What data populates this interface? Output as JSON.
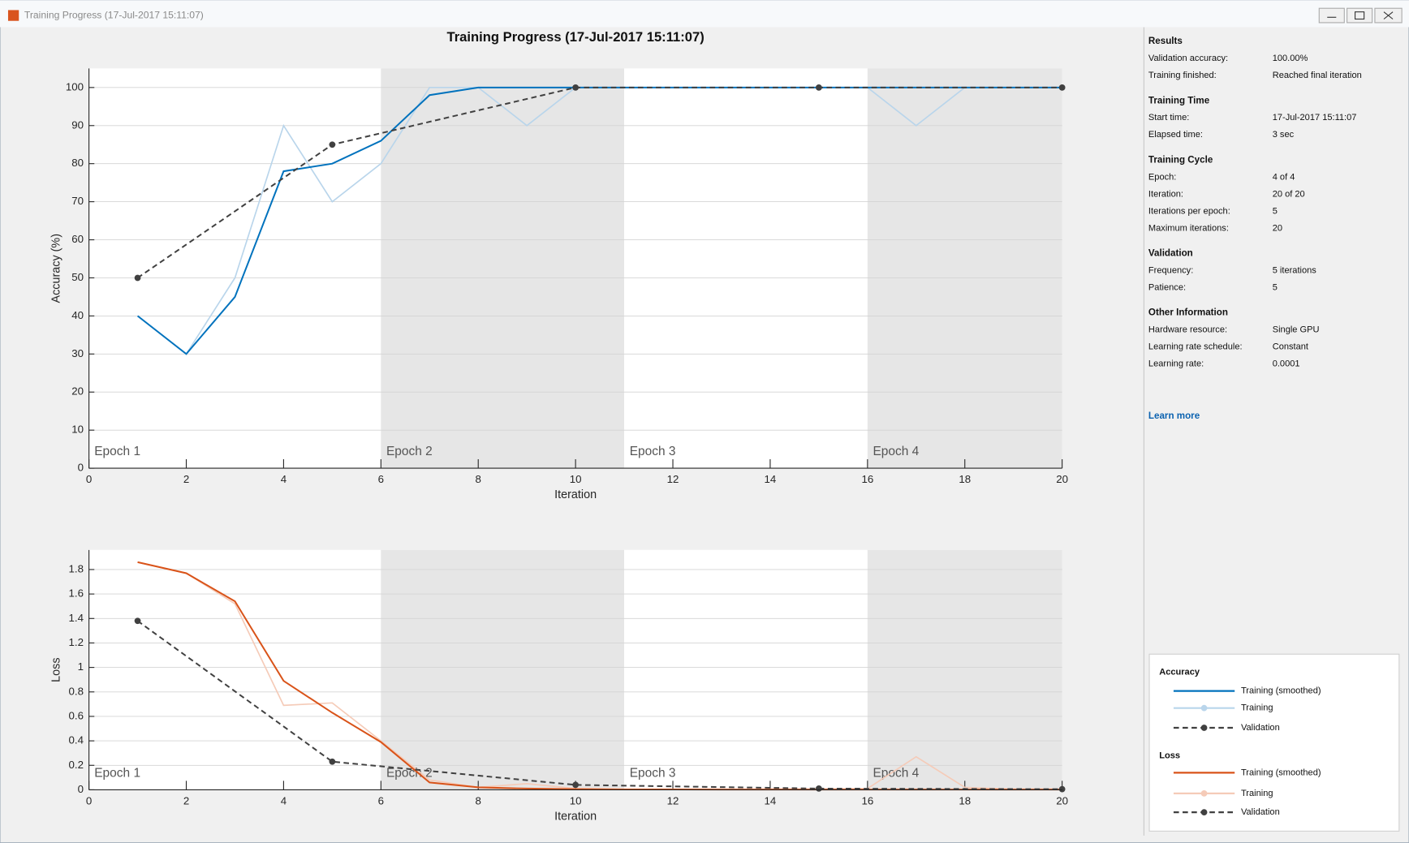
{
  "window": {
    "title": "Training Progress (17-Jul-2017 15:11:07)"
  },
  "chart_data": [
    {
      "type": "line",
      "title": "Training Progress (17-Jul-2017 15:11:07)",
      "x_label": "Iteration",
      "y_label": "Accuracy (%)",
      "xlim": [
        0,
        20
      ],
      "ylim": [
        0,
        105
      ],
      "xticks": [
        0,
        2,
        4,
        6,
        8,
        10,
        12,
        14,
        16,
        18,
        20
      ],
      "yticks": [
        0,
        10,
        20,
        30,
        40,
        50,
        60,
        70,
        80,
        90,
        100
      ],
      "grid": true,
      "epochs": [
        {
          "label": "Epoch 1",
          "start": 0,
          "end": 6
        },
        {
          "label": "Epoch 2",
          "start": 6,
          "end": 11
        },
        {
          "label": "Epoch 3",
          "start": 11,
          "end": 16
        },
        {
          "label": "Epoch 4",
          "start": 16,
          "end": 20
        }
      ],
      "series": [
        {
          "name": "Training (smoothed)",
          "color": "#0072bd",
          "dashed": false,
          "markers": false,
          "x": [
            1,
            2,
            3,
            4,
            5,
            6,
            7,
            8,
            9,
            10,
            11,
            12,
            13,
            14,
            15,
            16,
            17,
            18,
            19,
            20
          ],
          "values": [
            40,
            30,
            45,
            78,
            80,
            86,
            98,
            100,
            100,
            100,
            100,
            100,
            100,
            100,
            100,
            100,
            100,
            100,
            100,
            100
          ]
        },
        {
          "name": "Training",
          "color": "#b9d5eb",
          "dashed": false,
          "markers": false,
          "x": [
            1,
            2,
            3,
            4,
            5,
            6,
            7,
            8,
            9,
            10,
            11,
            12,
            13,
            14,
            15,
            16,
            17,
            18,
            19,
            20
          ],
          "values": [
            40,
            30,
            50,
            90,
            70,
            80,
            100,
            100,
            90,
            100,
            100,
            100,
            100,
            100,
            100,
            100,
            90,
            100,
            100,
            100
          ]
        },
        {
          "name": "Validation",
          "color": "#404040",
          "dashed": true,
          "markers": true,
          "x": [
            1,
            5,
            10,
            15,
            20
          ],
          "values": [
            50,
            85,
            100,
            100,
            100
          ]
        }
      ]
    },
    {
      "type": "line",
      "x_label": "Iteration",
      "y_label": "Loss",
      "xlim": [
        0,
        20
      ],
      "ylim": [
        0,
        1.96
      ],
      "xticks": [
        0,
        2,
        4,
        6,
        8,
        10,
        12,
        14,
        16,
        18,
        20
      ],
      "yticks": [
        0,
        0.2,
        0.4,
        0.6,
        0.8,
        1,
        1.2,
        1.4,
        1.6,
        1.8
      ],
      "grid": true,
      "epochs": [
        {
          "label": "Epoch 1",
          "start": 0,
          "end": 6
        },
        {
          "label": "Epoch 2",
          "start": 6,
          "end": 11
        },
        {
          "label": "Epoch 3",
          "start": 11,
          "end": 16
        },
        {
          "label": "Epoch 4",
          "start": 16,
          "end": 20
        }
      ],
      "series": [
        {
          "name": "Training (smoothed)",
          "color": "#d95319",
          "dashed": false,
          "markers": false,
          "x": [
            1,
            2,
            3,
            4,
            5,
            6,
            7,
            8,
            9,
            10,
            11,
            12,
            13,
            14,
            15,
            16,
            17,
            18,
            19,
            20
          ],
          "values": [
            1.86,
            1.77,
            1.54,
            0.89,
            0.63,
            0.39,
            0.06,
            0.02,
            0.01,
            0.005,
            0.003,
            0.003,
            0.002,
            0.002,
            0.002,
            0.002,
            0.002,
            0.002,
            0.002,
            0.002
          ]
        },
        {
          "name": "Training",
          "color": "#f5cbb8",
          "dashed": false,
          "markers": false,
          "x": [
            1,
            2,
            3,
            4,
            5,
            6,
            7,
            8,
            9,
            10,
            11,
            12,
            13,
            14,
            15,
            16,
            17,
            18,
            19,
            20
          ],
          "values": [
            1.86,
            1.77,
            1.52,
            0.69,
            0.71,
            0.4,
            0.08,
            0.02,
            0.05,
            0.01,
            0.005,
            0.005,
            0.005,
            0.005,
            0.005,
            0.01,
            0.27,
            0.02,
            0.005,
            0.005
          ]
        },
        {
          "name": "Validation",
          "color": "#404040",
          "dashed": true,
          "markers": true,
          "x": [
            1,
            5,
            10,
            15,
            20
          ],
          "values": [
            1.38,
            0.23,
            0.04,
            0.01,
            0.005
          ]
        }
      ]
    }
  ],
  "info_panel": {
    "sections": [
      {
        "heading": "Results",
        "rows": [
          {
            "label": "Validation accuracy:",
            "value": "100.00%"
          },
          {
            "label": "Training finished:",
            "value": "Reached final iteration"
          }
        ]
      },
      {
        "heading": "Training Time",
        "rows": [
          {
            "label": "Start time:",
            "value": "17-Jul-2017 15:11:07"
          },
          {
            "label": "Elapsed time:",
            "value": "3 sec"
          }
        ]
      },
      {
        "heading": "Training Cycle",
        "rows": [
          {
            "label": "Epoch:",
            "value": "4 of 4"
          },
          {
            "label": "Iteration:",
            "value": "20 of 20"
          },
          {
            "label": "Iterations per epoch:",
            "value": "5"
          },
          {
            "label": "Maximum iterations:",
            "value": "20"
          }
        ]
      },
      {
        "heading": "Validation",
        "rows": [
          {
            "label": "Frequency:",
            "value": "5 iterations"
          },
          {
            "label": "Patience:",
            "value": "5"
          }
        ]
      },
      {
        "heading": "Other Information",
        "rows": [
          {
            "label": "Hardware resource:",
            "value": "Single GPU"
          },
          {
            "label": "Learning rate schedule:",
            "value": "Constant"
          },
          {
            "label": "Learning rate:",
            "value": "0.0001"
          }
        ]
      }
    ],
    "link": "Learn more"
  },
  "legend": {
    "groups": [
      {
        "heading": "Accuracy"
      },
      {
        "heading": "Loss"
      }
    ]
  }
}
